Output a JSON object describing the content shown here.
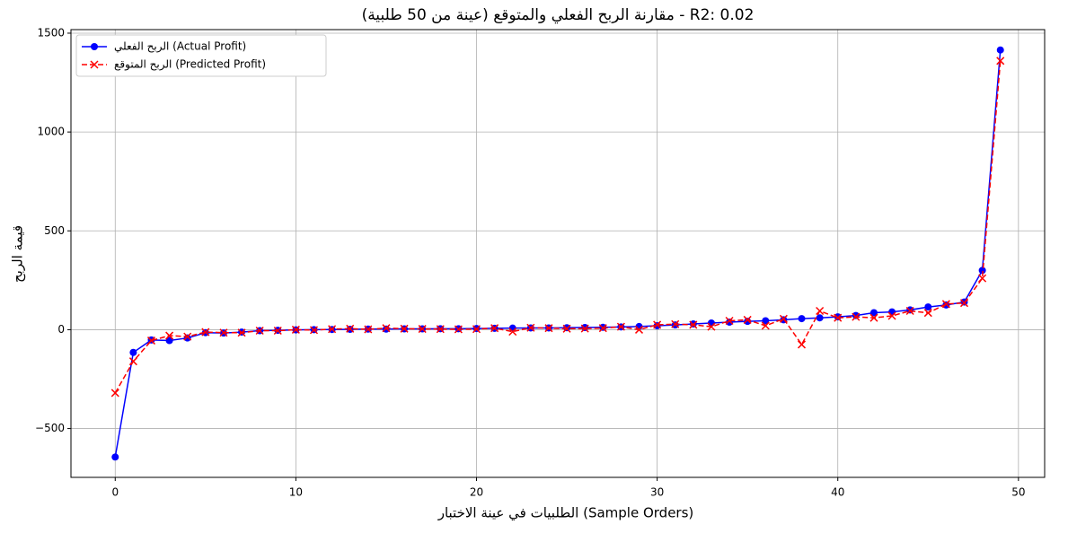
{
  "chart_data": {
    "type": "line",
    "title": "مقارنة الربح الفعلي والمتوقع (عينة من 50 طلبية) - R2: 0.02",
    "x_label": "الطلبيات في عينة الاختبار (Sample Orders)",
    "y_label": "قيمة الربح",
    "x": [
      0,
      1,
      2,
      3,
      4,
      5,
      6,
      7,
      8,
      9,
      10,
      11,
      12,
      13,
      14,
      15,
      16,
      17,
      18,
      19,
      20,
      21,
      22,
      23,
      24,
      25,
      26,
      27,
      28,
      29,
      30,
      31,
      32,
      33,
      34,
      35,
      36,
      37,
      38,
      39,
      40,
      41,
      42,
      43,
      44,
      45,
      46,
      47,
      48,
      49
    ],
    "series": [
      {
        "name": "الربح الفعلي (Actual Profit)",
        "color": "#0000ff",
        "marker": "o",
        "linestyle": "solid",
        "values": [
          -644,
          -115,
          -52,
          -55,
          -42,
          -15,
          -17,
          -12,
          -5,
          -3,
          -1,
          0,
          1,
          2,
          3,
          3,
          4,
          4,
          5,
          5,
          6,
          7,
          8,
          9,
          9,
          10,
          11,
          12,
          14,
          16,
          20,
          24,
          29,
          34,
          38,
          42,
          45,
          50,
          56,
          60,
          65,
          72,
          86,
          90,
          100,
          115,
          125,
          140,
          300,
          1415
        ]
      },
      {
        "name": "الربح المتوقع (Predicted Profit)",
        "color": "#ff0000",
        "marker": "x",
        "linestyle": "dashed",
        "values": [
          -320,
          -160,
          -55,
          -30,
          -35,
          -12,
          -15,
          -15,
          -5,
          -5,
          0,
          -2,
          3,
          5,
          2,
          8,
          5,
          4,
          3,
          2,
          3,
          8,
          -10,
          10,
          8,
          5,
          6,
          8,
          15,
          0,
          25,
          28,
          25,
          15,
          45,
          50,
          20,
          55,
          -75,
          95,
          60,
          65,
          60,
          70,
          95,
          85,
          130,
          135,
          260,
          1360
        ]
      }
    ],
    "xlim": [
      -2.45,
      51.45
    ],
    "xticks": [
      0,
      10,
      20,
      30,
      40,
      50
    ],
    "ylim": [
      -747,
      1518
    ],
    "yticks": [
      {
        "value": -500,
        "label": "−500"
      },
      0,
      500,
      1000,
      1500
    ],
    "grid": true,
    "legend": "upper left"
  }
}
